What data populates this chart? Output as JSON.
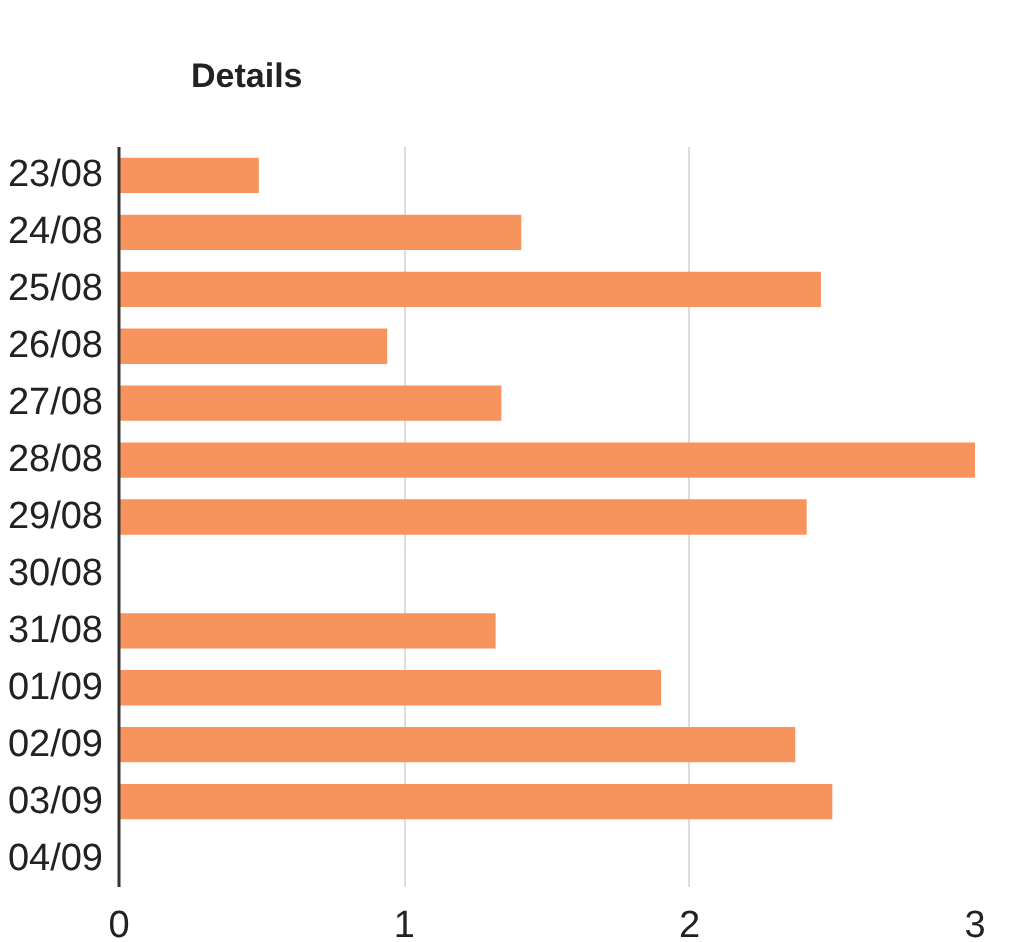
{
  "chart_data": {
    "type": "bar",
    "orientation": "horizontal",
    "title": "Details",
    "categories": [
      "23/08",
      "24/08",
      "25/08",
      "26/08",
      "27/08",
      "28/08",
      "29/08",
      "30/08",
      "31/08",
      "01/09",
      "02/09",
      "03/09",
      "04/09"
    ],
    "values": [
      0.49,
      1.41,
      2.46,
      0.94,
      1.34,
      3.0,
      2.41,
      null,
      1.32,
      1.9,
      2.37,
      2.5,
      null
    ],
    "color": "#f7935c",
    "xlim": [
      0,
      3
    ],
    "xticks": [
      0,
      1,
      2,
      3
    ],
    "grid": "x"
  }
}
